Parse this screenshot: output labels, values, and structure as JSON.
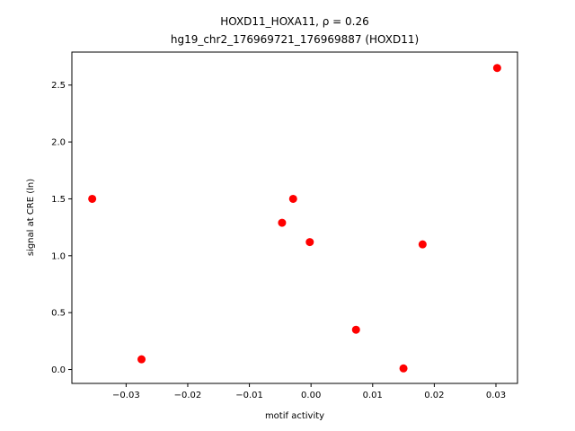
{
  "chart_data": {
    "type": "scatter",
    "title_line1": "HOXD11_HOXA11, ρ = 0.26",
    "title_line2": "hg19_chr2_176969721_176969887 (HOXD11)",
    "xlabel": "motif activity",
    "ylabel": "signal at CRE (ln)",
    "xlim": [
      -0.0388,
      0.0335
    ],
    "ylim": [
      -0.122,
      2.79
    ],
    "xticks": [
      -0.03,
      -0.02,
      -0.01,
      0.0,
      0.01,
      0.02,
      0.03
    ],
    "xtick_labels": [
      "−0.03",
      "−0.02",
      "−0.01",
      "0.00",
      "0.01",
      "0.02",
      "0.03"
    ],
    "yticks": [
      0.0,
      0.5,
      1.0,
      1.5,
      2.0,
      2.5
    ],
    "ytick_labels": [
      "0.0",
      "0.5",
      "1.0",
      "1.5",
      "2.0",
      "2.5"
    ],
    "marker_color": "#ff0000",
    "grid": false,
    "points": [
      {
        "x": -0.0355,
        "y": 1.5
      },
      {
        "x": -0.0275,
        "y": 0.09
      },
      {
        "x": -0.0047,
        "y": 1.29
      },
      {
        "x": -0.0029,
        "y": 1.5
      },
      {
        "x": -0.0002,
        "y": 1.12
      },
      {
        "x": 0.0073,
        "y": 0.35
      },
      {
        "x": 0.015,
        "y": 0.01
      },
      {
        "x": 0.0181,
        "y": 1.1
      },
      {
        "x": 0.0302,
        "y": 2.65
      }
    ]
  }
}
